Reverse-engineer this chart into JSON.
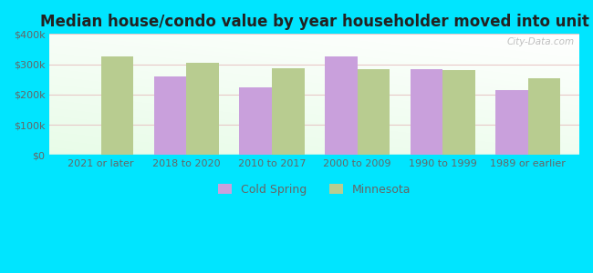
{
  "title": "Median house/condo value by year householder moved into unit",
  "categories": [
    "2021 or later",
    "2018 to 2020",
    "2010 to 2017",
    "2000 to 2009",
    "1990 to 1999",
    "1989 or earlier"
  ],
  "cold_spring": [
    null,
    260000,
    222000,
    325000,
    285000,
    215000
  ],
  "minnesota": [
    325000,
    305000,
    287000,
    284000,
    281000,
    254000
  ],
  "cold_spring_color": "#c9a0dc",
  "minnesota_color": "#b8cc90",
  "background_outer": "#00e5ff",
  "ylim": [
    0,
    400000
  ],
  "yticks": [
    0,
    100000,
    200000,
    300000,
    400000
  ],
  "ytick_labels": [
    "$0",
    "$100k",
    "$200k",
    "$300k",
    "$400k"
  ],
  "bar_width": 0.38,
  "watermark": "City-Data.com",
  "legend_cold_spring": "Cold Spring",
  "legend_minnesota": "Minnesota",
  "tick_color": "#666666",
  "title_color": "#222222",
  "title_fontsize": 12,
  "xlabel_fontsize": 8,
  "ylabel_fontsize": 8
}
